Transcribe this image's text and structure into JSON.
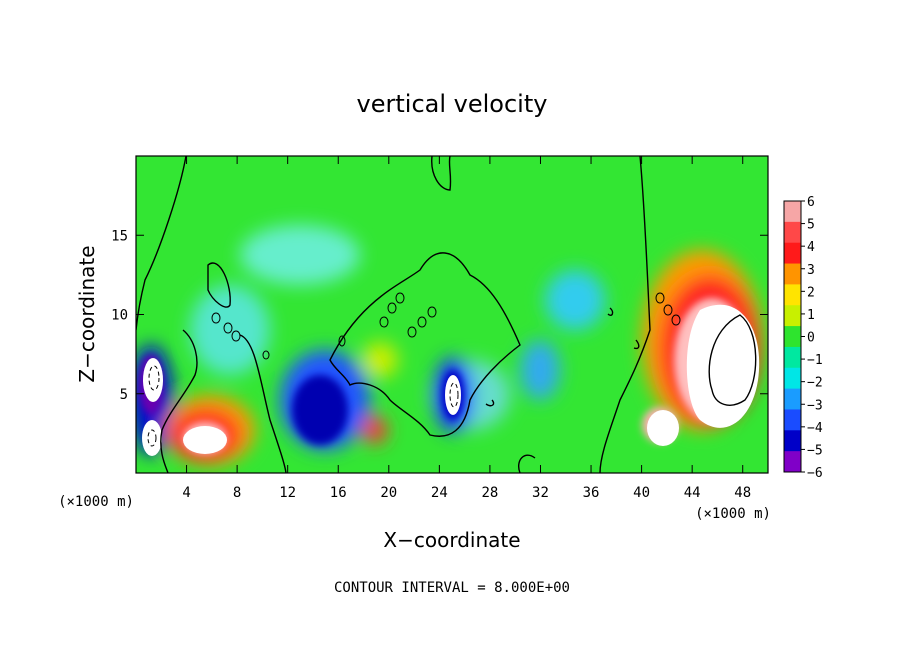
{
  "chart_data": {
    "type": "heatmap",
    "title": "vertical velocity",
    "xlabel": "X−coordinate",
    "ylabel": "Z−coordinate",
    "x_unit_left": "(×1000 m)",
    "x_unit_right": "(×1000 m)",
    "xlim": [
      0,
      50
    ],
    "ylim": [
      0,
      20
    ],
    "x_ticks": [
      4,
      8,
      12,
      16,
      20,
      24,
      28,
      32,
      36,
      40,
      44,
      48
    ],
    "y_ticks": [
      5,
      10,
      15
    ],
    "contour_note": "CONTOUR INTERVAL = 8.000E+00",
    "colorbar": {
      "levels": [
        6,
        5,
        4,
        3,
        2,
        1,
        0,
        -1,
        -2,
        -3,
        -4,
        -5,
        -6
      ],
      "labels": [
        "6",
        "5",
        "4",
        "3",
        "2",
        "1",
        "0",
        "−1",
        "−2",
        "−3",
        "−4",
        "−5",
        "−6"
      ],
      "colors": [
        "#f6a6a6",
        "#ff4848",
        "#ff1a1a",
        "#ff9400",
        "#ffe400",
        "#c8f000",
        "#2ee42e",
        "#00e8a0",
        "#00e6e6",
        "#1a9cff",
        "#1a4cff",
        "#0000c8",
        "#8000c8"
      ]
    },
    "features": [
      {
        "kind": "updraft",
        "x": 46.5,
        "z": 7.5,
        "rx": 3.2,
        "rz": 4.2,
        "value": 6
      },
      {
        "kind": "updraft",
        "x": 6.0,
        "z": 2.2,
        "rx": 2.4,
        "rz": 1.8,
        "value": 6
      },
      {
        "kind": "downdraft",
        "x": 15.0,
        "z": 4.5,
        "rx": 2.8,
        "rz": 3.2,
        "value": -6
      },
      {
        "kind": "downdraft",
        "x": 25.0,
        "z": 5.0,
        "rx": 1.2,
        "rz": 2.4,
        "value": -6
      },
      {
        "kind": "downdraft",
        "x": 1.2,
        "z": 4.5,
        "rx": 1.5,
        "rz": 3.5,
        "value": -6
      }
    ]
  }
}
